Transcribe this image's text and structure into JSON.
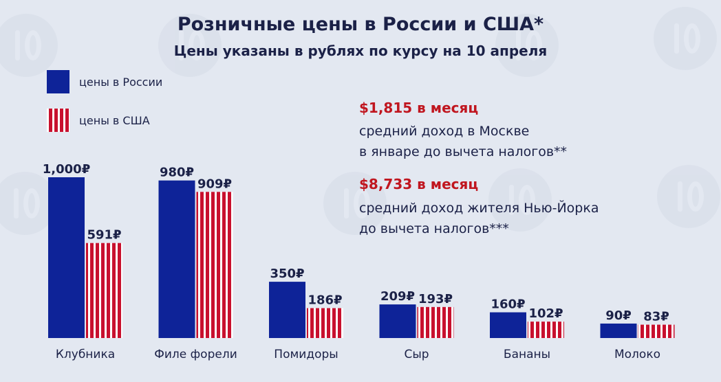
{
  "header": {
    "title": "Розничные цены в России и США*",
    "subtitle": "Цены указаны в рублях по курсу на 10 апреля"
  },
  "legend": [
    {
      "label": "цены в России",
      "color": "#0e2398"
    },
    {
      "label": "цены в США",
      "color": "#c8102e"
    }
  ],
  "income": [
    {
      "amount": "$1,815 в месяц",
      "lines": [
        "средний доход в Москве",
        "в январе до вычета налогов**"
      ]
    },
    {
      "amount": "$8,733 в месяц",
      "lines": [
        "средний доход жителя Нью-Йорка",
        "до вычета налогов***"
      ]
    }
  ],
  "chart_data": {
    "type": "bar",
    "categories": [
      "Клубника",
      "Филе форели",
      "Помидоры",
      "Сыр",
      "Бананы",
      "Молоко"
    ],
    "series": [
      {
        "name": "цены в России",
        "values": [
          1000,
          980,
          350,
          209,
          160,
          90
        ],
        "labels": [
          "1,000₽",
          "980₽",
          "350₽",
          "209₽",
          "160₽",
          "90₽"
        ]
      },
      {
        "name": "цены в США",
        "values": [
          591,
          909,
          186,
          193,
          102,
          83
        ],
        "labels": [
          "591₽",
          "909₽",
          "186₽",
          "193₽",
          "102₽",
          "83₽"
        ]
      }
    ],
    "ylim": [
      0,
      1000
    ],
    "grid": false,
    "legend_position": "top-left",
    "colors": {
      "russia": "#0e2398",
      "usa_stripe": "#c8102e",
      "usa_base": "#ffffff"
    }
  }
}
